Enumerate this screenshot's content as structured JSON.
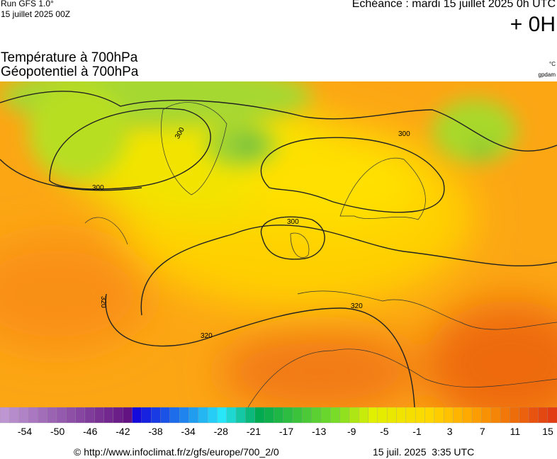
{
  "header": {
    "run": "Run GFS 1.0°",
    "run_date": "15 juillet 2025 00Z",
    "forecast": "Echéance : mardi 15 juillet 2025 0h UTC",
    "lead": "+ 0H"
  },
  "titles": {
    "temperature": "Température à 700hPa",
    "geopotential": "Géopotentiel à 700hPa",
    "unit_temperature": "°C",
    "unit_geopotential": "gpdam"
  },
  "map": {
    "contour_labels": [
      "300",
      "300",
      "300",
      "300",
      "320",
      "320",
      "320"
    ]
  },
  "colorbar": {
    "labels": [
      "-54",
      "-50",
      "-46",
      "-42",
      "-38",
      "-34",
      "-28",
      "-21",
      "-17",
      "-13",
      "-9",
      "-5",
      "-1",
      "3",
      "7",
      "11",
      "15"
    ]
  },
  "footer": {
    "source": "© http://www.infoclimat.fr/z/gfs/europe/700_2/0",
    "generated": "15 juil. 2025  3:35 UTC"
  }
}
